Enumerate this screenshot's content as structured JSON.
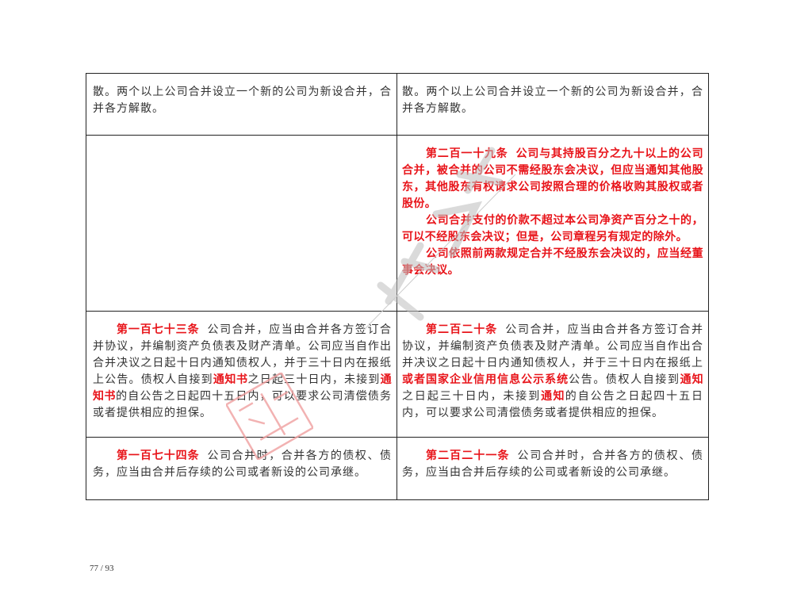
{
  "rows": [
    {
      "left": [
        [
          {
            "t": "散。两个以上公司合并设立一个新的公司为新设合并，合并各方解散。"
          }
        ]
      ],
      "right": [
        [
          {
            "t": "散。两个以上公司合并设立一个新的公司为新设合并，合并各方解散。"
          }
        ]
      ],
      "indent": false
    },
    {
      "left": [],
      "right": [
        [
          {
            "t": "第二百一十九条",
            "r": 1,
            "h": 1
          },
          {
            "t": "公司与其持股百分之九十以上的公司合并，被合并的公司不需经股东会决议，但应当通知其他股东，其他股东有权请求公司按照合理的价格收购其股权或者股份。",
            "r": 1
          }
        ],
        [
          {
            "t": "公司合并支付的价款不超过本公司净资产百分之十的，可以不经股东会决议；但是，公司章程另有规定的除外。",
            "r": 1
          }
        ],
        [
          {
            "t": "公司依照前两款规定合并不经股东会决议的，应当经董事会决议。",
            "r": 1
          }
        ]
      ],
      "indent": true
    },
    {
      "left": [
        [
          {
            "t": "第一百七十三条",
            "r": 1,
            "h": 1
          },
          {
            "t": "公司合并，应当由合并各方签订合并协议，并编制资产负债表及财产清单。公司应当自作出合并决议之日起十日内通知债权人，并于三十日内在报纸上公告。债权人自接到"
          },
          {
            "t": "通知书",
            "r": 1
          },
          {
            "t": "之日起三十日内，未接到"
          },
          {
            "t": "通知书",
            "r": 1
          },
          {
            "t": "的自公告之日起四十五日内，可以要求公司清偿债务或者提供相应的担保。"
          }
        ]
      ],
      "right": [
        [
          {
            "t": "第二百二十条",
            "r": 1,
            "h": 1
          },
          {
            "t": "公司合并，应当由合并各方签订合并协议，并编制资产负债表及财产清单。公司应当自作出合并决议之日起十日内通知债权人，并于三十日内在报纸上"
          },
          {
            "t": "或者国家企业信用信息公示系统",
            "r": 1
          },
          {
            "t": "公告。债权人自接到"
          },
          {
            "t": "通知",
            "r": 1
          },
          {
            "t": "之日起三十日内，未接到"
          },
          {
            "t": "通知",
            "r": 1
          },
          {
            "t": "的自公告之日起四十五日内，可以要求公司清偿债务或者提供相应的担保。"
          }
        ]
      ],
      "indent": true
    },
    {
      "left": [
        [
          {
            "t": "第一百七十四条",
            "r": 1,
            "h": 1
          },
          {
            "t": "公司合并时，合并各方的债权、债务，应当由合并后存续的公司或者新设的公司承继。"
          }
        ]
      ],
      "right": [
        [
          {
            "t": "第二百二十一条",
            "r": 1,
            "h": 1
          },
          {
            "t": "公司合并时，合并各方的债权、债务，应当由合并后存续的公司或者新设的公司承继。"
          }
        ]
      ],
      "indent": true
    }
  ],
  "page_number": "77 / 93",
  "colors": {
    "amendment": "#e8141a",
    "text": "#333333",
    "border": "#222222",
    "watermark": "#c8c8c8",
    "seal": "#f0a0a0"
  }
}
